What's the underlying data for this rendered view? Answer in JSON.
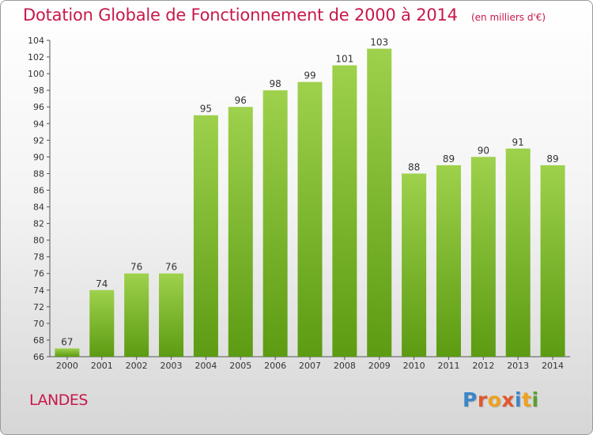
{
  "title": "Dotation Globale de Fonctionnement de 2000 à 2014",
  "unit": "(en milliers d'€)",
  "region": "LANDES",
  "logo": {
    "text": "Proxiti",
    "colors": [
      "#3a86c8",
      "#e2572b",
      "#f0a020",
      "#e2572b",
      "#3a86c8",
      "#f0a020",
      "#5aa02c"
    ]
  },
  "colors": {
    "accent": "#c8184a",
    "bar_top": "#9ed14c",
    "bar_bottom": "#5c9b12"
  },
  "chart_data": {
    "type": "bar",
    "title": "Dotation Globale de Fonctionnement de 2000 à 2014",
    "xlabel": "",
    "ylabel": "",
    "categories": [
      "2000",
      "2001",
      "2002",
      "2003",
      "2004",
      "2005",
      "2006",
      "2007",
      "2008",
      "2009",
      "2010",
      "2011",
      "2012",
      "2013",
      "2014"
    ],
    "values": [
      67,
      74,
      76,
      76,
      95,
      96,
      98,
      99,
      101,
      103,
      88,
      89,
      90,
      91,
      89
    ],
    "ylim": [
      66,
      104
    ],
    "yticks": [
      66,
      68,
      70,
      72,
      74,
      76,
      78,
      80,
      82,
      84,
      86,
      88,
      90,
      92,
      94,
      96,
      98,
      100,
      102,
      104
    ],
    "grid": false,
    "legend": "none"
  }
}
